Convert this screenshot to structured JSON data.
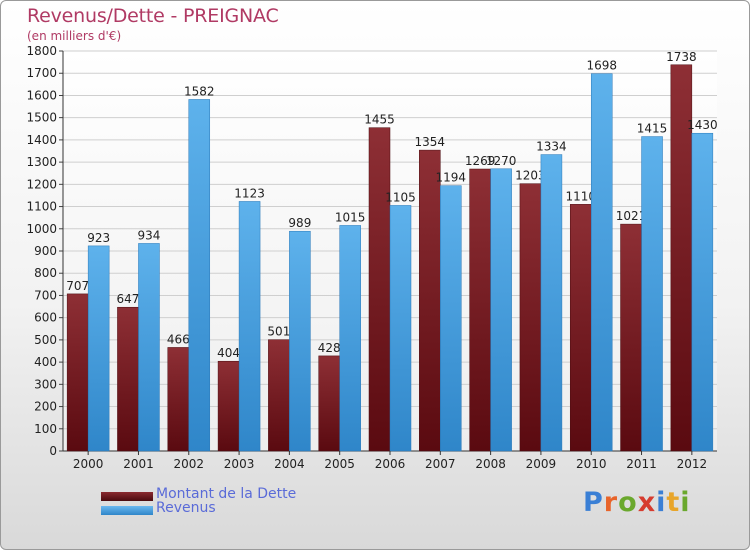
{
  "chart_data": {
    "type": "bar",
    "title": "Revenus/Dette - PREIGNAC",
    "subtitle": "(en milliers d'€)",
    "xlabel": "",
    "ylabel": "",
    "categories": [
      "2000",
      "2001",
      "2002",
      "2003",
      "2004",
      "2005",
      "2006",
      "2007",
      "2008",
      "2009",
      "2010",
      "2011",
      "2012"
    ],
    "series": [
      {
        "name": "Montant de la Dette",
        "color": "#7a1c22",
        "values": [
          707,
          647,
          466,
          404,
          501,
          428,
          1455,
          1354,
          1269,
          1203,
          1110,
          1021,
          1738
        ]
      },
      {
        "name": "Revenus",
        "color": "#4da3e0",
        "values": [
          923,
          934,
          1582,
          1123,
          989,
          1015,
          1105,
          1194,
          1270,
          1334,
          1698,
          1415,
          1430
        ]
      }
    ],
    "ylim": [
      0,
      1800
    ],
    "yticks": [
      0,
      100,
      200,
      300,
      400,
      500,
      600,
      700,
      800,
      900,
      1000,
      1100,
      1200,
      1300,
      1400,
      1500,
      1600,
      1700,
      1800
    ],
    "grid": true,
    "legend_position": "bottom-left"
  },
  "legend": {
    "items": [
      {
        "label": "Montant de la Dette",
        "color": "#7a1c22"
      },
      {
        "label": "Revenus",
        "color": "#4da3e0"
      }
    ]
  },
  "logo": {
    "text": "Proxiti",
    "colors": [
      "#3a7fd5",
      "#e8642a",
      "#6aa82d",
      "#d63c2f",
      "#3a7fd5",
      "#e8a52a",
      "#6aa82d"
    ]
  }
}
